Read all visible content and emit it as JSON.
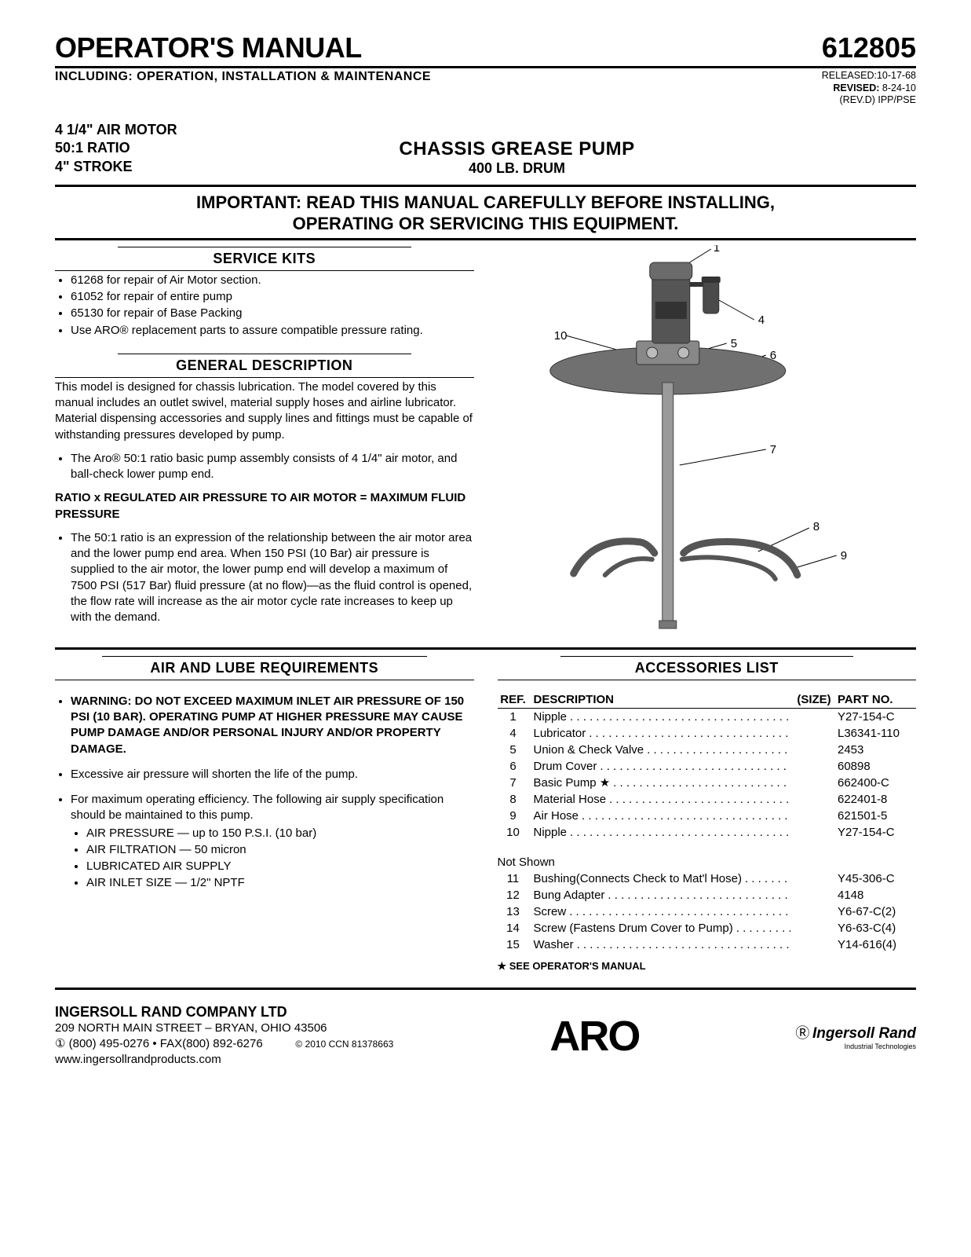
{
  "header": {
    "title": "OPERATOR'S MANUAL",
    "subtitle": "INCLUDING: OPERATION, INSTALLATION & MAINTENANCE",
    "part_number": "612805",
    "released_label": "RELEASED:",
    "released_date": "10-17-68",
    "revised_label": "REVISED:",
    "revised_date": "8-24-10",
    "rev_note": "(REV.D) IPP/PSE"
  },
  "specs": {
    "line1": "4 1/4\" AIR MOTOR",
    "line2": "50:1 RATIO",
    "line3": "4\" STROKE",
    "product_title": "CHASSIS GREASE PUMP",
    "product_sub": "400 LB. DRUM"
  },
  "important": {
    "line1": "IMPORTANT: READ THIS MANUAL CAREFULLY BEFORE INSTALLING,",
    "line2": "OPERATING OR SERVICING THIS EQUIPMENT."
  },
  "service_kits": {
    "heading": "SERVICE KITS",
    "items": [
      "61268 for repair of Air Motor section.",
      "61052 for repair of entire pump",
      "65130 for repair of Base Packing",
      "Use ARO® replacement parts to assure compatible pressure rating."
    ]
  },
  "general_desc": {
    "heading": "GENERAL DESCRIPTION",
    "para1": "This model is designed for chassis lubrication. The model covered by this manual includes an outlet swivel, material supply hoses and airline lubricator. Material dispensing accessories and supply lines and fittings must be capable of withstanding pressures developed by pump.",
    "bullet1": "The Aro® 50:1 ratio basic pump assembly consists of 4 1/4\" air motor, and ball-check lower pump end.",
    "formula": "RATIO x REGULATED AIR PRESSURE TO AIR MOTOR = MAXIMUM FLUID PRESSURE",
    "bullet2": "The 50:1 ratio is an expression of the relationship between the air motor area and the lower pump end area. When 150 PSI (10 Bar) air pressure is supplied to the air motor, the lower pump end will develop a maximum of 7500 PSI (517 Bar) fluid pressure (at no flow)—as the fluid control is opened, the flow rate will increase as the air motor cycle rate increases to keep up with the demand."
  },
  "air_lube": {
    "heading": "AIR AND LUBE REQUIREMENTS",
    "warning": "WARNING: DO NOT EXCEED MAXIMUM INLET AIR PRESSURE OF 150 PSI (10 BAR). OPERATING PUMP AT HIGHER PRESSURE MAY CAUSE PUMP DAMAGE AND/OR PERSONAL INJURY AND/OR PROPERTY DAMAGE.",
    "b2": "Excessive air pressure will shorten the life of the pump.",
    "b3_intro": "For maximum operating efficiency. The following air supply specification should be maintained to this pump.",
    "sub": [
      "AIR PRESSURE — up to 150 P.S.I. (10 bar)",
      "AIR FILTRATION — 50 micron",
      "LUBRICATED AIR SUPPLY",
      "AIR INLET SIZE — 1/2\" NPTF"
    ]
  },
  "accessories": {
    "heading": "ACCESSORIES LIST",
    "col_ref": "REF.",
    "col_desc": "DESCRIPTION",
    "col_size": "(SIZE)",
    "col_part": "PART NO.",
    "rows": [
      {
        "ref": "1",
        "desc": "Nipple",
        "part": "Y27-154-C"
      },
      {
        "ref": "4",
        "desc": "Lubricator",
        "part": "L36341-110"
      },
      {
        "ref": "5",
        "desc": "Union & Check Valve",
        "part": "2453"
      },
      {
        "ref": "6",
        "desc": "Drum Cover",
        "part": "60898"
      },
      {
        "ref": "7",
        "desc": "Basic Pump ★",
        "part": "662400-C"
      },
      {
        "ref": "8",
        "desc": "Material Hose",
        "part": "622401-8"
      },
      {
        "ref": "9",
        "desc": "Air Hose",
        "part": "621501-5"
      },
      {
        "ref": "10",
        "desc": "Nipple",
        "part": "Y27-154-C"
      }
    ],
    "not_shown_label": "Not Shown",
    "not_shown": [
      {
        "ref": "11",
        "desc": "Bushing(Connects Check to Mat'l Hose)",
        "part": "Y45-306-C"
      },
      {
        "ref": "12",
        "desc": "Bung Adapter",
        "part": "4148"
      },
      {
        "ref": "13",
        "desc": "Screw",
        "part": "Y6-67-C(2)"
      },
      {
        "ref": "14",
        "desc": "Screw",
        "part": "Y6-63-C(4)"
      },
      {
        "ref": "15",
        "desc": "Washer",
        "part": "Y14-616(4)"
      }
    ],
    "fasten_note": "(Fastens Drum Cover to Pump)",
    "star_note": "★ SEE OPERATOR'S MANUAL"
  },
  "figure": {
    "callouts": {
      "c1": "1",
      "c4": "4",
      "c5": "5",
      "c6": "6",
      "c7": "7",
      "c8": "8",
      "c9": "9",
      "c10": "10"
    },
    "colors": {
      "motor_top": "#6b6b6b",
      "motor_body": "#555555",
      "lubricator": "#4a4a4a",
      "coupling": "#888888",
      "cover": "#707070",
      "tube": "#9a9a9a",
      "hose": "#555555"
    }
  },
  "footer": {
    "company": "INGERSOLL RAND COMPANY LTD",
    "addr1": "209 NORTH MAIN STREET – BRYAN, OHIO 43506",
    "phone": "① (800) 495-0276 • FAX(800) 892-6276",
    "web": "www.ingersollrandproducts.com",
    "copyright": "© 2010  CCN 81378663",
    "aro": "ARO",
    "ir_name": "Ingersoll Rand",
    "ir_sub": "Industrial Technologies"
  }
}
